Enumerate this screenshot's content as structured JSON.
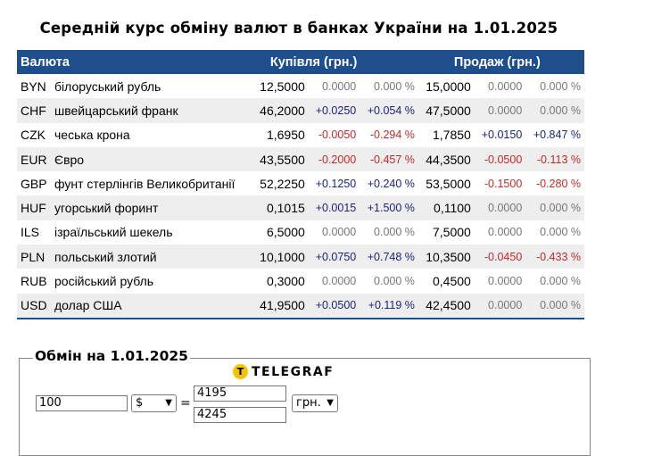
{
  "title": "Середній курс обміну валют в банках України на 1.01.2025",
  "table": {
    "headers": {
      "currency": "Валюта",
      "buy": "Купівля (грн.)",
      "sell": "Продаж (грн.)"
    },
    "rows": [
      {
        "code": "BYN",
        "name": "білоруський рубль",
        "buy": "12,5000",
        "buy_abs": "0.0000",
        "buy_pct": "0.000 %",
        "buy_dir": "zero",
        "sell": "15,0000",
        "sell_abs": "0.0000",
        "sell_pct": "0.000 %",
        "sell_dir": "zero"
      },
      {
        "code": "CHF",
        "name": "швейцарський франк",
        "buy": "46,2000",
        "buy_abs": "+0.0250",
        "buy_pct": "+0.054 %",
        "buy_dir": "pos",
        "sell": "47,5000",
        "sell_abs": "0.0000",
        "sell_pct": "0.000 %",
        "sell_dir": "zero"
      },
      {
        "code": "CZK",
        "name": "чеська крона",
        "buy": "1,6950",
        "buy_abs": "-0.0050",
        "buy_pct": "-0.294 %",
        "buy_dir": "neg",
        "sell": "1,7850",
        "sell_abs": "+0.0150",
        "sell_pct": "+0.847 %",
        "sell_dir": "pos"
      },
      {
        "code": "EUR",
        "name": "Євро",
        "buy": "43,5500",
        "buy_abs": "-0.2000",
        "buy_pct": "-0.457 %",
        "buy_dir": "neg",
        "sell": "44,3500",
        "sell_abs": "-0.0500",
        "sell_pct": "-0.113 %",
        "sell_dir": "neg"
      },
      {
        "code": "GBP",
        "name": "фунт стерлінгів Великобританії",
        "buy": "52,2250",
        "buy_abs": "+0.1250",
        "buy_pct": "+0.240 %",
        "buy_dir": "pos",
        "sell": "53,5000",
        "sell_abs": "-0.1500",
        "sell_pct": "-0.280 %",
        "sell_dir": "neg"
      },
      {
        "code": "HUF",
        "name": "угорський форинт",
        "buy": "0,1015",
        "buy_abs": "+0.0015",
        "buy_pct": "+1.500 %",
        "buy_dir": "pos",
        "sell": "0,1100",
        "sell_abs": "0.0000",
        "sell_pct": "0.000 %",
        "sell_dir": "zero"
      },
      {
        "code": "ILS",
        "name": "ізраїльський шекель",
        "buy": "6,5000",
        "buy_abs": "0.0000",
        "buy_pct": "0.000 %",
        "buy_dir": "zero",
        "sell": "7,5000",
        "sell_abs": "0.0000",
        "sell_pct": "0.000 %",
        "sell_dir": "zero"
      },
      {
        "code": "PLN",
        "name": "польський злотий",
        "buy": "10,1000",
        "buy_abs": "+0.0750",
        "buy_pct": "+0.748 %",
        "buy_dir": "pos",
        "sell": "10,3500",
        "sell_abs": "-0.0450",
        "sell_pct": "-0.433 %",
        "sell_dir": "neg"
      },
      {
        "code": "RUB",
        "name": "російський рубль",
        "buy": "0,3000",
        "buy_abs": "0.0000",
        "buy_pct": "0.000 %",
        "buy_dir": "zero",
        "sell": "0,4500",
        "sell_abs": "0.0000",
        "sell_pct": "0.000 %",
        "sell_dir": "zero"
      },
      {
        "code": "USD",
        "name": "долар США",
        "buy": "41,9500",
        "buy_abs": "+0.0500",
        "buy_pct": "+0.119 %",
        "buy_dir": "pos",
        "sell": "42,4500",
        "sell_abs": "0.0000",
        "sell_pct": "0.000 %",
        "sell_dir": "zero"
      }
    ]
  },
  "exchange": {
    "legend": "Обмін на 1.01.2025",
    "brand": "TELEGRAF",
    "brand_icon": "T",
    "amount": "100",
    "currency_selected": "$",
    "equals": "=",
    "result_buy": "4195",
    "result_sell": "4245",
    "target_currency": "грн."
  },
  "colors": {
    "header_bg": "#1f4e8c",
    "positive": "#1a237e",
    "negative": "#c62828",
    "neutral": "#777777",
    "brand_yellow": "#f5c400"
  }
}
